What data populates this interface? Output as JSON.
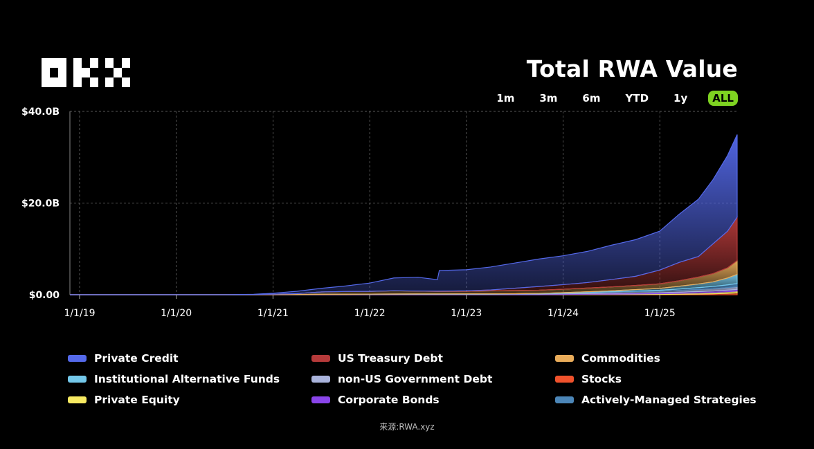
{
  "title": "Total RWA Value",
  "brand": {
    "logo_text": "OKX"
  },
  "time_ranges": [
    {
      "label": "1m",
      "active": false
    },
    {
      "label": "3m",
      "active": false
    },
    {
      "label": "6m",
      "active": false
    },
    {
      "label": "YTD",
      "active": false
    },
    {
      "label": "1y",
      "active": false
    },
    {
      "label": "ALL",
      "active": true
    }
  ],
  "colors": {
    "active_range": "#7ed321",
    "background": "#000000"
  },
  "source": "来源:RWA.xyz",
  "chart_data": {
    "type": "area",
    "stacked": true,
    "title": "Total RWA Value",
    "xlabel": "",
    "ylabel": "",
    "xlim": [
      2018.9,
      2025.8
    ],
    "ylim": [
      0,
      40
    ],
    "y_unit": "$B",
    "y_ticks": [
      {
        "value": 0,
        "label": "$0.00"
      },
      {
        "value": 20,
        "label": "$20.0B"
      },
      {
        "value": 40,
        "label": "$40.0B"
      }
    ],
    "x_ticks": [
      {
        "value": 2019,
        "label": "1/1/19"
      },
      {
        "value": 2020,
        "label": "1/1/20"
      },
      {
        "value": 2021,
        "label": "1/1/21"
      },
      {
        "value": 2022,
        "label": "1/1/22"
      },
      {
        "value": 2023,
        "label": "1/1/23"
      },
      {
        "value": 2024,
        "label": "1/1/24"
      },
      {
        "value": 2025,
        "label": "1/1/25"
      }
    ],
    "grid": true,
    "x": [
      2018.9,
      2019.5,
      2020.0,
      2020.5,
      2020.8,
      2021.0,
      2021.25,
      2021.5,
      2021.75,
      2022.0,
      2022.25,
      2022.5,
      2022.7,
      2022.72,
      2023.0,
      2023.25,
      2023.5,
      2023.75,
      2024.0,
      2024.25,
      2024.5,
      2024.75,
      2025.0,
      2025.2,
      2025.4,
      2025.55,
      2025.7,
      2025.8
    ],
    "series": [
      {
        "name": "Stocks",
        "color": "#f0522c",
        "values": [
          0,
          0,
          0,
          0,
          0,
          0,
          0,
          0,
          0,
          0,
          0,
          0,
          0,
          0,
          0,
          0,
          0,
          0,
          0,
          0.02,
          0.03,
          0.05,
          0.08,
          0.1,
          0.15,
          0.2,
          0.3,
          0.4
        ]
      },
      {
        "name": "Private Equity",
        "color": "#f7ea62",
        "values": [
          0,
          0,
          0,
          0,
          0,
          0,
          0,
          0,
          0,
          0,
          0,
          0,
          0,
          0,
          0,
          0,
          0,
          0,
          0.05,
          0.08,
          0.1,
          0.12,
          0.15,
          0.2,
          0.25,
          0.3,
          0.35,
          0.4
        ]
      },
      {
        "name": "Corporate Bonds",
        "color": "#8a45ea",
        "values": [
          0,
          0,
          0,
          0,
          0,
          0.02,
          0.03,
          0.05,
          0.06,
          0.08,
          0.1,
          0.1,
          0.1,
          0.1,
          0.1,
          0.1,
          0.12,
          0.12,
          0.15,
          0.15,
          0.18,
          0.2,
          0.2,
          0.25,
          0.3,
          0.3,
          0.35,
          0.35
        ]
      },
      {
        "name": "non-US Government Debt",
        "color": "#aab4dc",
        "values": [
          0,
          0,
          0,
          0,
          0,
          0,
          0.02,
          0.05,
          0.05,
          0.06,
          0.06,
          0.08,
          0.08,
          0.08,
          0.1,
          0.1,
          0.1,
          0.12,
          0.15,
          0.2,
          0.25,
          0.3,
          0.35,
          0.4,
          0.45,
          0.5,
          0.55,
          0.6
        ]
      },
      {
        "name": "Actively-Managed Strategies",
        "color": "#4c86b8",
        "values": [
          0,
          0,
          0,
          0,
          0,
          0,
          0,
          0,
          0,
          0,
          0,
          0,
          0,
          0,
          0,
          0,
          0,
          0,
          0,
          0.05,
          0.1,
          0.15,
          0.2,
          0.3,
          0.4,
          0.5,
          0.6,
          0.7
        ]
      },
      {
        "name": "Institutional Alternative Funds",
        "color": "#74c8ea",
        "values": [
          0,
          0,
          0,
          0,
          0,
          0,
          0,
          0,
          0,
          0,
          0,
          0,
          0,
          0,
          0,
          0,
          0,
          0.05,
          0.1,
          0.15,
          0.2,
          0.3,
          0.4,
          0.6,
          0.8,
          1.0,
          1.5,
          2.0
        ]
      },
      {
        "name": "Commodities",
        "color": "#e9ac5a",
        "values": [
          0,
          0,
          0,
          0,
          0.05,
          0.1,
          0.2,
          0.5,
          0.6,
          0.6,
          0.7,
          0.6,
          0.55,
          0.55,
          0.55,
          0.65,
          0.7,
          0.7,
          0.75,
          0.8,
          0.85,
          0.9,
          1.0,
          1.2,
          1.5,
          1.8,
          2.2,
          3.0
        ]
      },
      {
        "name": "US Treasury Debt",
        "color": "#b53a3a",
        "values": [
          0,
          0,
          0,
          0,
          0,
          0,
          0,
          0,
          0,
          0,
          0,
          0.02,
          0.05,
          0.05,
          0.1,
          0.2,
          0.5,
          0.8,
          1.0,
          1.2,
          1.6,
          2.0,
          3.0,
          4.0,
          4.5,
          6.5,
          8.0,
          9.5
        ]
      },
      {
        "name": "Private Credit",
        "color": "#5469ea",
        "values": [
          0,
          0,
          0,
          0,
          0.05,
          0.2,
          0.5,
          0.8,
          1.2,
          1.8,
          2.8,
          3.0,
          2.5,
          4.5,
          4.6,
          5.0,
          5.5,
          6.0,
          6.3,
          6.8,
          7.5,
          8.0,
          8.5,
          10.5,
          12.5,
          14.0,
          16.5,
          18.0
        ]
      }
    ],
    "legend": [
      {
        "name": "Private Credit",
        "color": "#5469ea"
      },
      {
        "name": "US Treasury Debt",
        "color": "#b53a3a"
      },
      {
        "name": "Commodities",
        "color": "#e9ac5a"
      },
      {
        "name": "Institutional Alternative Funds",
        "color": "#74c8ea"
      },
      {
        "name": "non-US Government Debt",
        "color": "#aab4dc"
      },
      {
        "name": "Stocks",
        "color": "#f0522c"
      },
      {
        "name": "Private Equity",
        "color": "#f7ea62"
      },
      {
        "name": "Corporate Bonds",
        "color": "#8a45ea"
      },
      {
        "name": "Actively-Managed Strategies",
        "color": "#4c86b8"
      }
    ],
    "legend_position": "bottom"
  }
}
